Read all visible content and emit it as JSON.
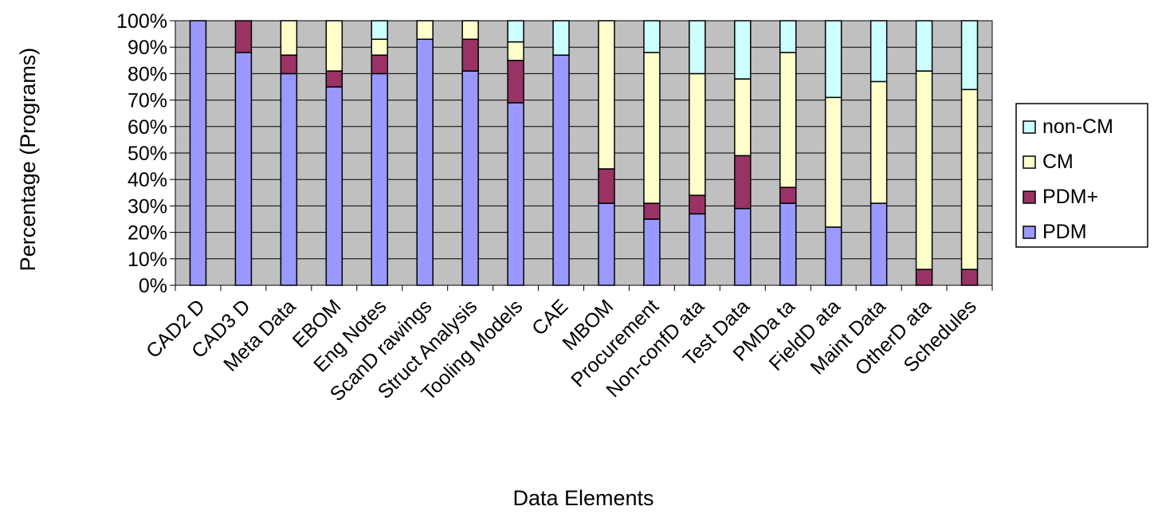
{
  "chart_data": {
    "type": "bar",
    "stacked": true,
    "percent": true,
    "title": "",
    "xlabel": "Data Elements",
    "ylabel": "Percentage (Programs)",
    "ylim": [
      0,
      100
    ],
    "yticks": [
      "0%",
      "10%",
      "20%",
      "30%",
      "40%",
      "50%",
      "60%",
      "70%",
      "80%",
      "90%",
      "100%"
    ],
    "grid": true,
    "legend_position": "right",
    "categories": [
      "CAD2 D",
      "CAD3 D",
      "Meta Data",
      "EBOM",
      "Eng Notes",
      "ScanD rawings",
      "Struct Analysis",
      "Tooling Models",
      "CAE",
      "MBOM",
      "Procurement",
      "Non-confD ata",
      "Test Data",
      "PMDa  ta",
      "FieldD ata",
      "Maint Data",
      "OtherD ata",
      "Schedules"
    ],
    "series": [
      {
        "name": "PDM",
        "color": "#9999ff",
        "values": [
          100,
          88,
          80,
          75,
          80,
          93,
          81,
          69,
          87,
          31,
          25,
          27,
          29,
          31,
          22,
          31,
          0,
          0
        ]
      },
      {
        "name": "PDM+",
        "color": "#993366",
        "values": [
          0,
          12,
          7,
          6,
          7,
          0,
          12,
          16,
          0,
          13,
          6,
          7,
          20,
          6,
          0,
          0,
          6,
          6
        ]
      },
      {
        "name": "CM",
        "color": "#ffffcc",
        "values": [
          0,
          0,
          13,
          19,
          6,
          7,
          7,
          7,
          0,
          56,
          57,
          46,
          29,
          51,
          49,
          46,
          75,
          68
        ]
      },
      {
        "name": "non-CM",
        "color": "#ccffff",
        "values": [
          0,
          0,
          0,
          0,
          7,
          0,
          0,
          8,
          13,
          0,
          12,
          20,
          22,
          12,
          29,
          23,
          19,
          26
        ]
      }
    ],
    "legend_order": [
      "non-CM",
      "CM",
      "PDM+",
      "PDM"
    ]
  }
}
